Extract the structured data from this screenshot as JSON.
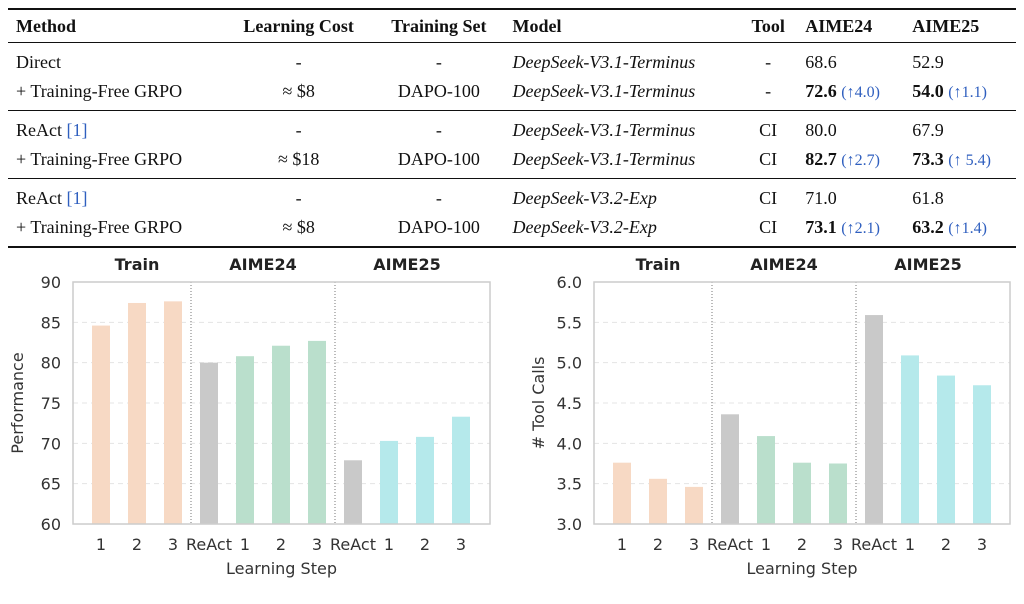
{
  "table": {
    "headers": [
      "Method",
      "Learning Cost",
      "Training Set",
      "Model",
      "Tool",
      "AIME24",
      "AIME25"
    ],
    "rows": [
      {
        "method": "Direct",
        "cite": "",
        "cost": "-",
        "set": "-",
        "model": "DeepSeek-V3.1-Terminus",
        "tool": "-",
        "a24": "68.6",
        "a24_delta": "",
        "a25": "52.9",
        "a25_delta": ""
      },
      {
        "method": "+ Training-Free GRPO",
        "cite": "",
        "cost": "≈ $8",
        "set": "DAPO-100",
        "model": "DeepSeek-V3.1-Terminus",
        "tool": "-",
        "a24": "72.6",
        "a24_delta": "(↑4.0)",
        "a25": "54.0",
        "a25_delta": "(↑1.1)"
      },
      {
        "method": "ReAct",
        "cite": "[1]",
        "cost": "-",
        "set": "-",
        "model": "DeepSeek-V3.1-Terminus",
        "tool": "CI",
        "a24": "80.0",
        "a24_delta": "",
        "a25": "67.9",
        "a25_delta": ""
      },
      {
        "method": "+ Training-Free GRPO",
        "cite": "",
        "cost": "≈ $18",
        "set": "DAPO-100",
        "model": "DeepSeek-V3.1-Terminus",
        "tool": "CI",
        "a24": "82.7",
        "a24_delta": "(↑2.7)",
        "a25": "73.3",
        "a25_delta": "(↑ 5.4)"
      },
      {
        "method": "ReAct",
        "cite": "[1]",
        "cost": "-",
        "set": "-",
        "model": "DeepSeek-V3.2-Exp",
        "tool": "CI",
        "a24": "71.0",
        "a24_delta": "",
        "a25": "61.8",
        "a25_delta": ""
      },
      {
        "method": "+ Training-Free GRPO",
        "cite": "",
        "cost": "≈ $8",
        "set": "DAPO-100",
        "model": "DeepSeek-V3.2-Exp",
        "tool": "CI",
        "a24": "73.1",
        "a24_delta": "(↑2.1)",
        "a25": "63.2",
        "a25_delta": "(↑1.4)"
      }
    ]
  },
  "chart_data": [
    {
      "type": "bar",
      "xlabel": "Learning Step",
      "ylabel": "Performance",
      "ylim": [
        60,
        90
      ],
      "yticks": [
        60,
        65,
        70,
        75,
        80,
        85,
        90
      ],
      "groups": [
        "Train",
        "AIME24",
        "AIME25"
      ],
      "categories": [
        "1",
        "2",
        "3",
        "ReAct",
        "1",
        "2",
        "3",
        "ReAct",
        "1",
        "2",
        "3"
      ],
      "group_of": [
        0,
        0,
        0,
        1,
        1,
        1,
        1,
        2,
        2,
        2,
        2
      ],
      "values": [
        84.6,
        87.4,
        87.6,
        80.0,
        80.8,
        82.1,
        82.7,
        67.9,
        70.3,
        70.8,
        73.3
      ],
      "colors": [
        "#f7d9c4",
        "#f7d9c4",
        "#f7d9c4",
        "#c9c9c9",
        "#badfcc",
        "#badfcc",
        "#badfcc",
        "#c9c9c9",
        "#b5e9eb",
        "#b5e9eb",
        "#b5e9eb"
      ],
      "grid": true
    },
    {
      "type": "bar",
      "xlabel": "Learning Step",
      "ylabel": "# Tool Calls",
      "ylim": [
        3.0,
        6.0
      ],
      "yticks": [
        "3.0",
        "3.5",
        "4.0",
        "4.5",
        "5.0",
        "5.5",
        "6.0"
      ],
      "groups": [
        "Train",
        "AIME24",
        "AIME25"
      ],
      "categories": [
        "1",
        "2",
        "3",
        "ReAct",
        "1",
        "2",
        "3",
        "ReAct",
        "1",
        "2",
        "3"
      ],
      "group_of": [
        0,
        0,
        0,
        1,
        1,
        1,
        1,
        2,
        2,
        2,
        2
      ],
      "values": [
        3.76,
        3.56,
        3.46,
        4.36,
        4.09,
        3.76,
        3.75,
        5.59,
        5.09,
        4.84,
        4.72
      ],
      "colors": [
        "#f7d9c4",
        "#f7d9c4",
        "#f7d9c4",
        "#c9c9c9",
        "#badfcc",
        "#badfcc",
        "#badfcc",
        "#c9c9c9",
        "#b5e9eb",
        "#b5e9eb",
        "#b5e9eb"
      ],
      "grid": true
    }
  ]
}
